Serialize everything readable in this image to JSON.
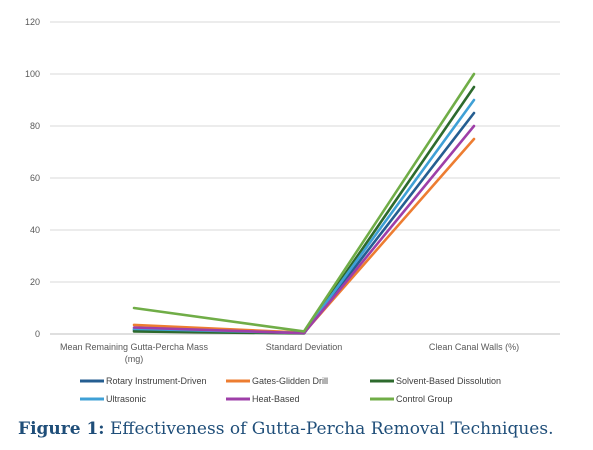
{
  "chart_data": {
    "type": "line",
    "categories": [
      "Mean Remaining Gutta-Percha Mass (mg)",
      "Standard Deviation",
      "Clean Canal Walls (%)"
    ],
    "category_lines": [
      [
        "Mean Remaining Gutta-Percha Mass",
        "(mg)"
      ],
      [
        "Standard Deviation"
      ],
      [
        "Clean Canal Walls (%)"
      ]
    ],
    "ylim": [
      0,
      120
    ],
    "yticks": [
      0,
      20,
      40,
      60,
      80,
      100,
      120
    ],
    "grid": true,
    "legend_position": "bottom",
    "series": [
      {
        "name": "Rotary Instrument-Driven",
        "color": "#255e91",
        "values": [
          1.5,
          0.3,
          85
        ]
      },
      {
        "name": "Gates-Glidden Drill",
        "color": "#ed7d31",
        "values": [
          3.5,
          0.5,
          75
        ]
      },
      {
        "name": "Solvent-Based Dissolution",
        "color": "#2d6a2d",
        "values": [
          1.0,
          0.2,
          95
        ]
      },
      {
        "name": "Ultrasonic",
        "color": "#3fa0d6",
        "values": [
          2.0,
          0.4,
          90
        ]
      },
      {
        "name": "Heat-Based",
        "color": "#9e3fa8",
        "values": [
          2.5,
          0.3,
          80
        ]
      },
      {
        "name": "Control Group",
        "color": "#70ad47",
        "values": [
          10,
          1.0,
          100
        ]
      }
    ]
  },
  "caption": {
    "label": "Figure 1:",
    "text": "Effectiveness of Gutta-Percha Removal Techniques."
  }
}
